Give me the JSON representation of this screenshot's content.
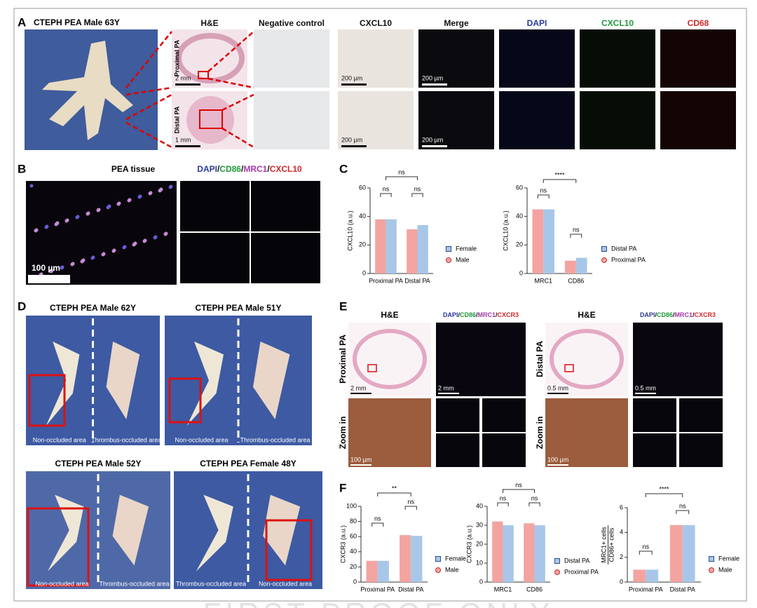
{
  "panel_a": {
    "label": "A",
    "title": "CTEPH  PEA  Male  63Y",
    "columns": [
      "H&E",
      "Negative control",
      "CXCL10",
      "Merge",
      "DAPI",
      "CXCL10",
      "CD68"
    ],
    "column_colors": [
      "#111111",
      "#111111",
      "#111111",
      "#111111",
      "#2a3a9c",
      "#1f9a3a",
      "#d12a2a"
    ],
    "rows": [
      "Proximal PA",
      "Distal PA"
    ],
    "scale_bars": [
      "2 mm",
      "200 µm",
      "200 µm",
      "1 mm",
      "200 µm",
      "200 µm"
    ]
  },
  "panel_b": {
    "label": "B",
    "title": "PEA tissue",
    "stain": [
      {
        "text": "DAPI",
        "color": "#2a3a9c"
      },
      {
        "text": "/",
        "color": "#111111"
      },
      {
        "text": "CD86",
        "color": "#1f9a3a"
      },
      {
        "text": "/",
        "color": "#111111"
      },
      {
        "text": "MRC1",
        "color": "#a23aa8"
      },
      {
        "text": "/",
        "color": "#111111"
      },
      {
        "text": "CXCL10",
        "color": "#d12a2a"
      }
    ],
    "scale_bar": "100 µm"
  },
  "panel_c": {
    "label": "C"
  },
  "panel_d": {
    "label": "D",
    "photos": [
      {
        "title": "CTEPH  PEA  Male  62Y",
        "captions": [
          "Non-occluded area",
          "Thrombus-occluded area"
        ]
      },
      {
        "title": "CTEPH  PEA  Male  51Y",
        "captions": [
          "Non-occluded area",
          "Thrombus-occluded area"
        ]
      },
      {
        "title": "CTEPH  PEA  Male  52Y",
        "captions": [
          "Non-occluded area",
          "Thrombus-occluded area"
        ]
      },
      {
        "title": "CTEPH  PEA  Female  48Y",
        "captions": [
          "Thrombus-occluded area",
          "Non-occluded area"
        ]
      }
    ]
  },
  "panel_e": {
    "label": "E",
    "groups": [
      {
        "title": "H&E",
        "stain": [
          {
            "text": "DAPI",
            "color": "#2a3a9c"
          },
          {
            "text": "/",
            "color": "#111111"
          },
          {
            "text": "CD86",
            "color": "#1f9a3a"
          },
          {
            "text": "/",
            "color": "#111111"
          },
          {
            "text": "MRC1",
            "color": "#a23aa8"
          },
          {
            "text": "/",
            "color": "#111111"
          },
          {
            "text": "CXCR3",
            "color": "#d12a2a"
          }
        ],
        "row_labels": [
          "Proximal PA",
          "Zoom in"
        ],
        "scale_bars": [
          "2 mm",
          "2 mm",
          "100 µm"
        ]
      },
      {
        "title": "H&E",
        "stain": [
          {
            "text": "DAPI",
            "color": "#2a3a9c"
          },
          {
            "text": "/",
            "color": "#111111"
          },
          {
            "text": "CD86",
            "color": "#1f9a3a"
          },
          {
            "text": "/",
            "color": "#111111"
          },
          {
            "text": "MRC1",
            "color": "#a23aa8"
          },
          {
            "text": "/",
            "color": "#111111"
          },
          {
            "text": "CXCR3",
            "color": "#d12a2a"
          }
        ],
        "row_labels": [
          "Distal PA",
          "Zoom in"
        ],
        "scale_bars": [
          "0.5 mm",
          "0.5 mm",
          "100 µm"
        ]
      }
    ]
  },
  "panel_f": {
    "label": "F"
  },
  "watermark": "FIRST PROOF ONLY",
  "chart_data": [
    {
      "type": "bar",
      "ylabel": "CXCL10 (a.u.)",
      "categories": [
        "Proximal PA",
        "Distal PA"
      ],
      "series": [
        {
          "name": "Male",
          "color": "#f3a4a1",
          "values": [
            38,
            31
          ]
        },
        {
          "name": "Female",
          "color": "#a8c7e8",
          "values": [
            38,
            34
          ]
        }
      ],
      "ylim": [
        0,
        60
      ],
      "yticks": [
        0,
        20,
        40,
        60
      ],
      "annotations": [
        "ns",
        "ns",
        "ns"
      ]
    },
    {
      "type": "bar",
      "ylabel": "CXCL10 (a.u.)",
      "categories": [
        "MRC1",
        "CD86"
      ],
      "series": [
        {
          "name": "Proximal PA",
          "color": "#f3a4a1",
          "values": [
            45,
            9
          ]
        },
        {
          "name": "Distal PA",
          "color": "#a8c7e8",
          "values": [
            45,
            11
          ]
        }
      ],
      "ylim": [
        0,
        60
      ],
      "yticks": [
        0,
        20,
        40,
        60
      ],
      "annotations": [
        "ns",
        "****",
        "ns"
      ]
    },
    {
      "type": "bar",
      "ylabel": "CXCR3 (a.u.)",
      "categories": [
        "Proximal PA",
        "Distal PA"
      ],
      "series": [
        {
          "name": "Male",
          "color": "#f3a4a1",
          "values": [
            28,
            62
          ]
        },
        {
          "name": "Female",
          "color": "#a8c7e8",
          "values": [
            28,
            61
          ]
        }
      ],
      "ylim": [
        0,
        100
      ],
      "yticks": [
        0,
        20,
        40,
        60,
        80,
        100
      ],
      "annotations": [
        "ns",
        "ns",
        "**"
      ]
    },
    {
      "type": "bar",
      "ylabel": "CXCR3 (a.u.)",
      "categories": [
        "MRC1",
        "CD86"
      ],
      "series": [
        {
          "name": "Proximal PA",
          "color": "#f3a4a1",
          "values": [
            32,
            31
          ]
        },
        {
          "name": "Distal PA",
          "color": "#a8c7e8",
          "values": [
            30,
            30
          ]
        }
      ],
      "ylim": [
        0,
        40
      ],
      "yticks": [
        0,
        10,
        20,
        30,
        40
      ],
      "annotations": [
        "ns",
        "ns",
        "ns"
      ]
    },
    {
      "type": "bar",
      "ylabel": [
        "MRC1+ cells",
        "CD86+ cells"
      ],
      "categories": [
        "Proximal PA",
        "Distal PA"
      ],
      "series": [
        {
          "name": "Male",
          "color": "#f3a4a1",
          "values": [
            1.0,
            4.6
          ]
        },
        {
          "name": "Female",
          "color": "#a8c7e8",
          "values": [
            1.0,
            4.6
          ]
        }
      ],
      "ylim": [
        0,
        6
      ],
      "yticks": [
        0,
        2,
        4,
        6
      ],
      "annotations": [
        "ns",
        "ns",
        "****"
      ]
    }
  ]
}
